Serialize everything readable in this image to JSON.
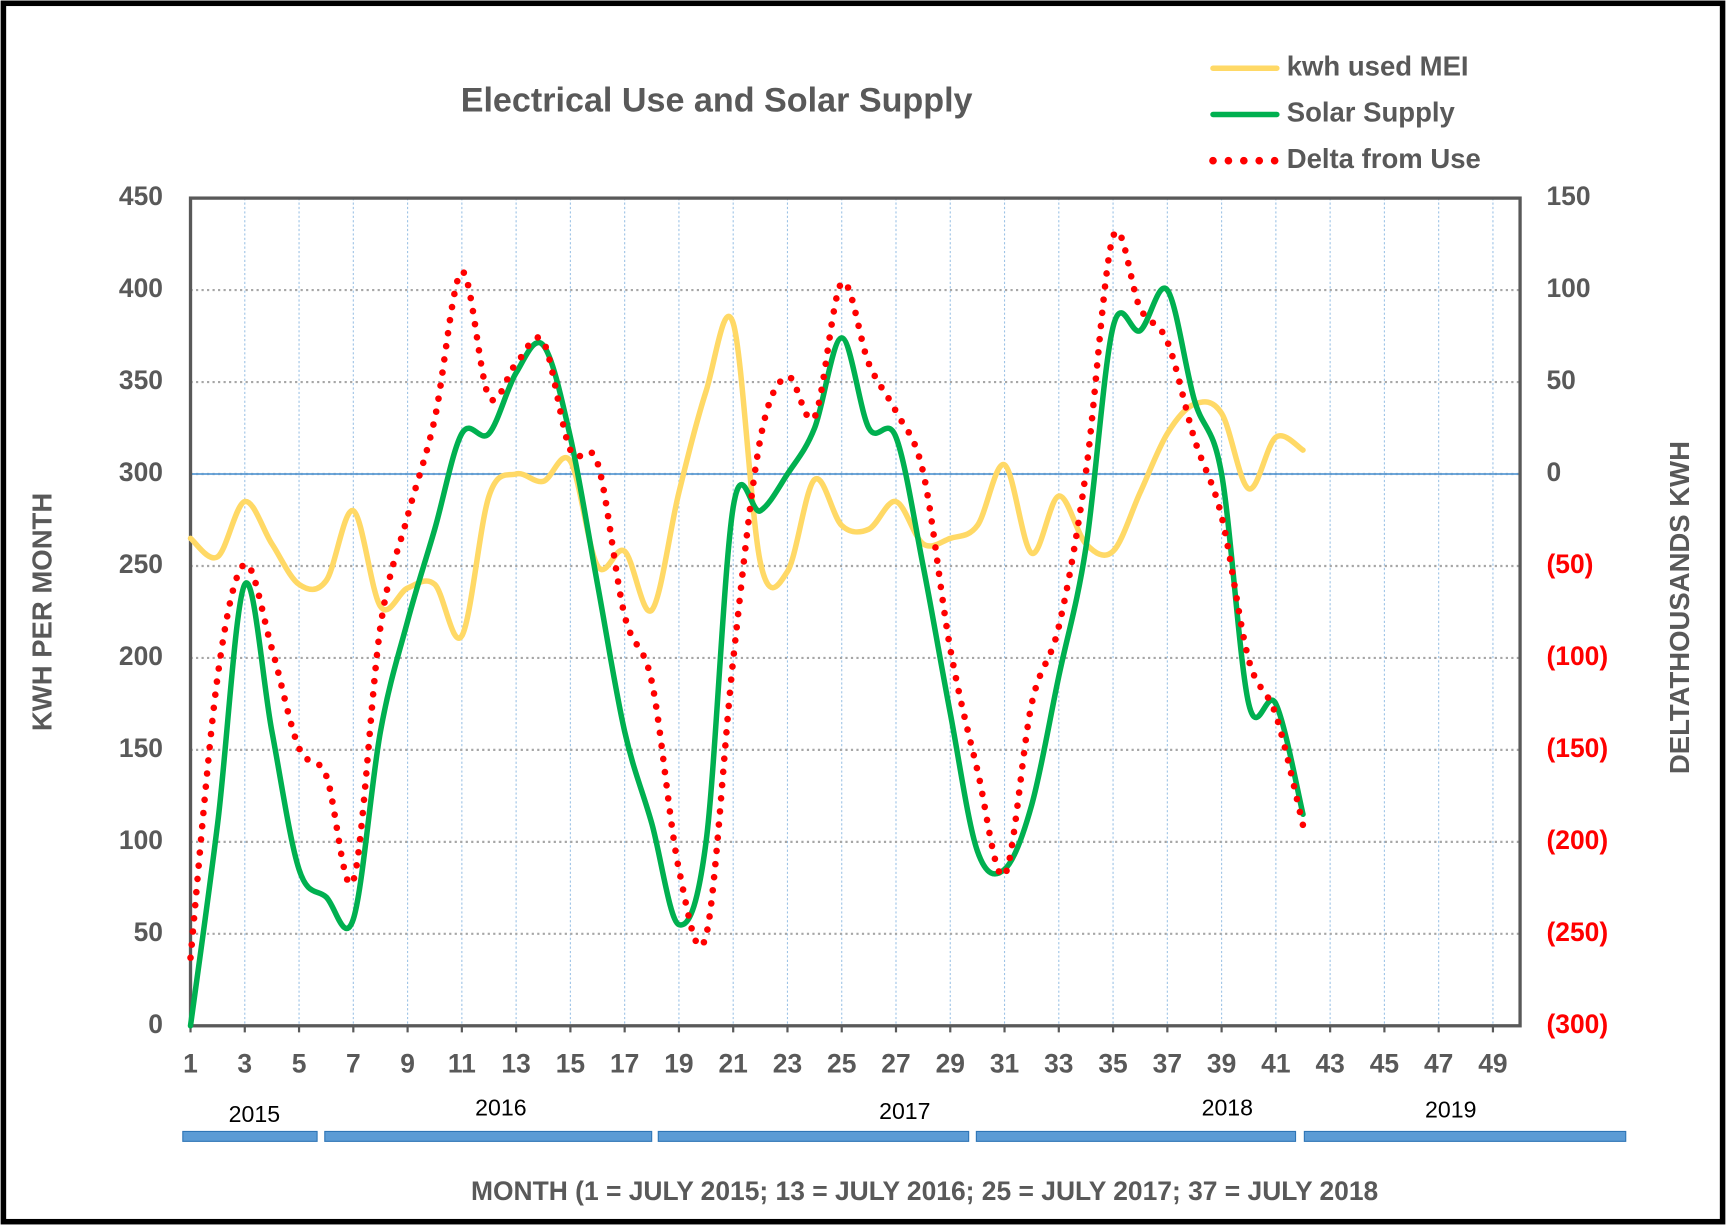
{
  "chart_data": {
    "type": "line",
    "title": "Electrical Use and Solar Supply",
    "ylabel": "KWH PER MONTH",
    "y2label": "DELTATHOUSANDS KWH",
    "xlabel": "MONTH (1 = JULY 2015; 13 = JULY 2016; 25 = JULY 2017; 37 = JULY 2018",
    "year_labels": [
      "2015",
      "2016",
      "2017",
      "2018",
      "2019"
    ],
    "x": [
      1,
      2,
      3,
      4,
      5,
      6,
      7,
      8,
      9,
      10,
      11,
      12,
      13,
      14,
      15,
      16,
      17,
      18,
      19,
      20,
      21,
      22,
      23,
      24,
      25,
      26,
      27,
      28,
      29,
      30,
      31,
      32,
      33,
      34,
      35,
      36,
      37,
      38,
      39,
      40,
      41,
      42
    ],
    "series": [
      {
        "name": "kwh used MEI",
        "color": "#ffd966",
        "style": "solid",
        "axis": "y",
        "values": [
          265,
          255,
          285,
          262,
          240,
          242,
          280,
          228,
          238,
          240,
          212,
          288,
          300,
          296,
          307,
          250,
          258,
          226,
          290,
          345,
          382,
          252,
          247,
          297,
          272,
          270,
          285,
          262,
          265,
          272,
          305,
          257,
          288,
          262,
          258,
          290,
          322,
          338,
          333,
          292,
          320,
          313
        ]
      },
      {
        "name": "Solar Supply",
        "color": "#00b050",
        "style": "solid",
        "axis": "y",
        "values": [
          0,
          110,
          240,
          160,
          85,
          70,
          58,
          160,
          220,
          270,
          322,
          322,
          355,
          370,
          320,
          240,
          160,
          110,
          55,
          100,
          282,
          280,
          300,
          325,
          374,
          325,
          320,
          250,
          170,
          95,
          85,
          120,
          190,
          260,
          380,
          378,
          400,
          340,
          300,
          175,
          175,
          115
        ]
      },
      {
        "name": "Delta from Use",
        "color": "#ff0000",
        "style": "dotted",
        "axis": "y2",
        "values": [
          -263,
          -110,
          -49,
          -95,
          -149,
          -164,
          -221,
          -83,
          -23,
          30,
          110,
          42,
          60,
          72,
          13,
          6,
          -77,
          -113,
          -215,
          -251,
          -101,
          19,
          53,
          31,
          104,
          60,
          34,
          1,
          -95,
          -161,
          -218,
          -125,
          -83,
          1,
          129,
          90,
          72,
          19,
          -23,
          -101,
          -131,
          -191
        ]
      }
    ],
    "xlim": [
      1,
      50
    ],
    "xticks": [
      1,
      3,
      5,
      7,
      9,
      11,
      13,
      15,
      17,
      19,
      21,
      23,
      25,
      27,
      29,
      31,
      33,
      35,
      37,
      39,
      41,
      43,
      45,
      47,
      49
    ],
    "ylim": [
      0,
      450
    ],
    "yticks": [
      0,
      50,
      100,
      150,
      200,
      250,
      300,
      350,
      400,
      450
    ],
    "y2lim": [
      -300,
      150
    ],
    "y2ticks": [
      {
        "value": -300,
        "label": "(300)"
      },
      {
        "value": -250,
        "label": "(250)"
      },
      {
        "value": -200,
        "label": "(200)"
      },
      {
        "value": -150,
        "label": "(150)"
      },
      {
        "value": -100,
        "label": "(100)"
      },
      {
        "value": -50,
        "label": "(50)"
      },
      0,
      50,
      100,
      150
    ],
    "grid": true,
    "legend": "top-right"
  }
}
